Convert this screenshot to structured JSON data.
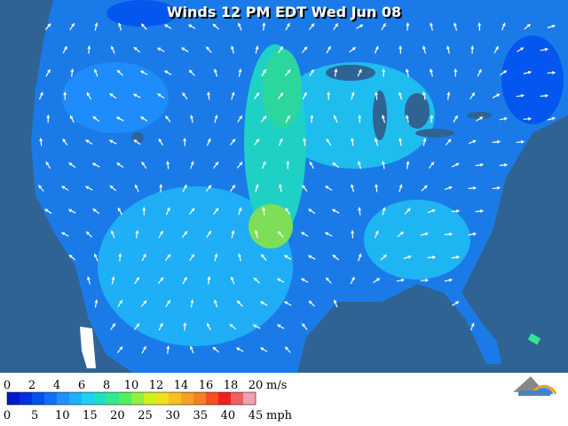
{
  "title": "Winds 12 PM EDT Wed Jun 08",
  "legend": {
    "ms_ticks": [
      0,
      2,
      4,
      6,
      8,
      10,
      12,
      14,
      16,
      18,
      20
    ],
    "ms_unit": "m/s",
    "mph_ticks": [
      0,
      5,
      10,
      15,
      20,
      25,
      30,
      35,
      40,
      45
    ],
    "mph_unit": "mph",
    "colors": [
      "#0018c8",
      "#0030e0",
      "#0050f0",
      "#1070f8",
      "#2090ff",
      "#20b0ff",
      "#20d0f0",
      "#20e0c0",
      "#30e890",
      "#50f060",
      "#90f040",
      "#d0f020",
      "#f0e020",
      "#f8c020",
      "#f8a020",
      "#f88020",
      "#f85020",
      "#f02020",
      "#f06060",
      "#f0a0b0"
    ]
  }
}
